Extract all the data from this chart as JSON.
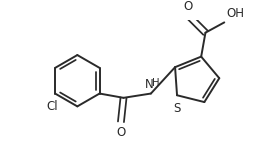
{
  "bg_color": "#ffffff",
  "line_color": "#2a2a2a",
  "line_width": 1.4,
  "font_size": 8.5,
  "figsize": [
    2.77,
    1.43
  ],
  "dpi": 100,
  "xlim": [
    0,
    277
  ],
  "ylim": [
    0,
    143
  ]
}
